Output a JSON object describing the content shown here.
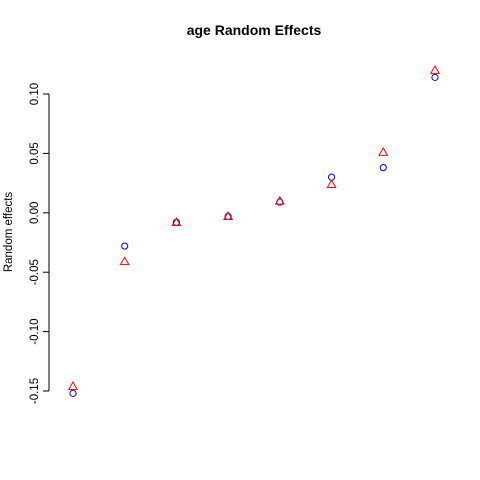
{
  "chart_data": {
    "type": "scatter",
    "title": "age Random Effects",
    "xlabel": "",
    "ylabel": "Random effects",
    "ylim": [
      -0.155,
      0.125
    ],
    "y_ticks": [
      -0.15,
      -0.1,
      -0.05,
      0.0,
      0.05,
      0.1
    ],
    "y_tick_labels": [
      "-0.15",
      "-0.10",
      "-0.05",
      "0.00",
      "0.05",
      "0.10"
    ],
    "grid": false,
    "x": [
      1,
      2,
      3,
      4,
      5,
      6,
      7,
      8
    ],
    "series": [
      {
        "marker": "circle",
        "color": "#0000ff",
        "values": [
          -0.152,
          -0.028,
          -0.008,
          -0.003,
          0.009,
          0.03,
          0.038,
          0.114
        ]
      },
      {
        "marker": "triangle",
        "color": "#ff0000",
        "values": [
          -0.146,
          -0.041,
          -0.008,
          -0.003,
          0.01,
          0.024,
          0.051,
          0.12
        ]
      }
    ]
  }
}
